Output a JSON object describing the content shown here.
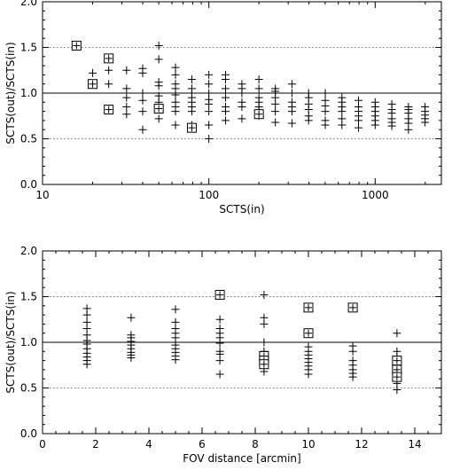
{
  "chart_data": [
    {
      "type": "scatter",
      "xscale": "log",
      "xlim": [
        10,
        2500
      ],
      "ylim": [
        0,
        2.0
      ],
      "xlabel": "SCTS(in)",
      "ylabel": "SCTS(out)/SCTS(in)",
      "xticks": [
        10,
        100,
        1000
      ],
      "xtick_labels": [
        "10",
        "100",
        "1000"
      ],
      "yticks": [
        0,
        0.5,
        1.0,
        1.5,
        2.0
      ],
      "ytick_labels": [
        "0.0",
        "0.5",
        "1.0",
        "1.5",
        "2.0"
      ],
      "reference_lines": [
        {
          "y": 1.0,
          "style": "solid"
        },
        {
          "y": 0.5,
          "style": "dotted"
        },
        {
          "y": 1.5,
          "style": "dotted"
        }
      ],
      "series": [
        {
          "marker": "plus",
          "points": [
            [
              20,
              1.22
            ],
            [
              25,
              1.38
            ],
            [
              25,
              1.25
            ],
            [
              25,
              1.1
            ],
            [
              32,
              1.25
            ],
            [
              32,
              1.05
            ],
            [
              32,
              0.95
            ],
            [
              32,
              0.85
            ],
            [
              32,
              0.77
            ],
            [
              40,
              1.27
            ],
            [
              40,
              1.22
            ],
            [
              40,
              1.0
            ],
            [
              40,
              0.92
            ],
            [
              40,
              0.8
            ],
            [
              40,
              0.6
            ],
            [
              50,
              1.52
            ],
            [
              50,
              1.37
            ],
            [
              50,
              1.12
            ],
            [
              50,
              1.08
            ],
            [
              50,
              0.97
            ],
            [
              50,
              0.9
            ],
            [
              50,
              0.82
            ],
            [
              50,
              0.72
            ],
            [
              63,
              1.28
            ],
            [
              63,
              1.2
            ],
            [
              63,
              1.1
            ],
            [
              63,
              1.05
            ],
            [
              63,
              0.98
            ],
            [
              63,
              0.9
            ],
            [
              63,
              0.85
            ],
            [
              63,
              0.8
            ],
            [
              63,
              0.65
            ],
            [
              79,
              1.15
            ],
            [
              79,
              1.05
            ],
            [
              79,
              1.0
            ],
            [
              79,
              0.95
            ],
            [
              79,
              0.9
            ],
            [
              79,
              0.85
            ],
            [
              79,
              0.8
            ],
            [
              79,
              0.65
            ],
            [
              100,
              1.2
            ],
            [
              100,
              1.1
            ],
            [
              100,
              1.0
            ],
            [
              100,
              0.93
            ],
            [
              100,
              0.88
            ],
            [
              100,
              0.8
            ],
            [
              100,
              0.65
            ],
            [
              100,
              0.5
            ],
            [
              126,
              1.2
            ],
            [
              126,
              1.15
            ],
            [
              126,
              1.05
            ],
            [
              126,
              0.95
            ],
            [
              126,
              0.85
            ],
            [
              126,
              0.8
            ],
            [
              126,
              0.7
            ],
            [
              158,
              1.1
            ],
            [
              158,
              1.05
            ],
            [
              158,
              1.0
            ],
            [
              158,
              0.9
            ],
            [
              158,
              0.85
            ],
            [
              158,
              0.72
            ],
            [
              200,
              1.15
            ],
            [
              200,
              1.05
            ],
            [
              200,
              0.95
            ],
            [
              200,
              0.9
            ],
            [
              200,
              0.85
            ],
            [
              200,
              0.8
            ],
            [
              200,
              0.75
            ],
            [
              251,
              1.05
            ],
            [
              251,
              1.02
            ],
            [
              251,
              0.95
            ],
            [
              251,
              0.88
            ],
            [
              251,
              0.8
            ],
            [
              251,
              0.68
            ],
            [
              316,
              1.1
            ],
            [
              316,
              1.0
            ],
            [
              316,
              0.9
            ],
            [
              316,
              0.85
            ],
            [
              316,
              0.8
            ],
            [
              316,
              0.67
            ],
            [
              398,
              1.0
            ],
            [
              398,
              0.95
            ],
            [
              398,
              0.88
            ],
            [
              398,
              0.82
            ],
            [
              398,
              0.75
            ],
            [
              398,
              0.7
            ],
            [
              501,
              1.0
            ],
            [
              501,
              0.92
            ],
            [
              501,
              0.86
            ],
            [
              501,
              0.8
            ],
            [
              501,
              0.7
            ],
            [
              501,
              0.65
            ],
            [
              631,
              0.95
            ],
            [
              631,
              0.9
            ],
            [
              631,
              0.85
            ],
            [
              631,
              0.8
            ],
            [
              631,
              0.72
            ],
            [
              631,
              0.65
            ],
            [
              794,
              0.92
            ],
            [
              794,
              0.85
            ],
            [
              794,
              0.8
            ],
            [
              794,
              0.75
            ],
            [
              794,
              0.7
            ],
            [
              794,
              0.62
            ],
            [
              1000,
              0.9
            ],
            [
              1000,
              0.85
            ],
            [
              1000,
              0.8
            ],
            [
              1000,
              0.75
            ],
            [
              1000,
              0.7
            ],
            [
              1000,
              0.65
            ],
            [
              1259,
              0.88
            ],
            [
              1259,
              0.82
            ],
            [
              1259,
              0.78
            ],
            [
              1259,
              0.72
            ],
            [
              1259,
              0.68
            ],
            [
              1259,
              0.64
            ],
            [
              1585,
              0.85
            ],
            [
              1585,
              0.82
            ],
            [
              1585,
              0.78
            ],
            [
              1585,
              0.72
            ],
            [
              1585,
              0.67
            ],
            [
              1585,
              0.6
            ],
            [
              1995,
              0.85
            ],
            [
              1995,
              0.8
            ],
            [
              1995,
              0.76
            ],
            [
              1995,
              0.72
            ],
            [
              1995,
              0.68
            ]
          ]
        },
        {
          "marker": "boxed-plus",
          "points": [
            [
              16,
              1.52
            ],
            [
              20,
              1.1
            ],
            [
              25,
              1.38
            ],
            [
              25,
              0.82
            ],
            [
              50,
              0.83
            ],
            [
              79,
              0.62
            ],
            [
              200,
              0.77
            ]
          ]
        }
      ]
    },
    {
      "type": "scatter",
      "xscale": "linear",
      "xlim": [
        0,
        15
      ],
      "ylim": [
        0,
        2.0
      ],
      "xlabel": "FOV distance [arcmin]",
      "ylabel": "SCTS(out)/SCTS(in)",
      "xticks": [
        0,
        2,
        4,
        6,
        8,
        10,
        12,
        14
      ],
      "xtick_labels": [
        "0",
        "2",
        "4",
        "6",
        "8",
        "10",
        "12",
        "14"
      ],
      "yticks": [
        0,
        0.5,
        1.0,
        1.5,
        2.0
      ],
      "ytick_labels": [
        "0.0",
        "0.5",
        "1.0",
        "1.5",
        "2.0"
      ],
      "reference_lines": [
        {
          "y": 1.0,
          "style": "solid"
        },
        {
          "y": 0.5,
          "style": "dotted"
        },
        {
          "y": 1.5,
          "style": "dotted"
        }
      ],
      "series": [
        {
          "marker": "plus",
          "points": [
            [
              1.67,
              1.37
            ],
            [
              1.67,
              1.3
            ],
            [
              1.67,
              1.22
            ],
            [
              1.67,
              1.15
            ],
            [
              1.67,
              1.08
            ],
            [
              1.67,
              1.02
            ],
            [
              1.67,
              0.98
            ],
            [
              1.67,
              0.93
            ],
            [
              1.67,
              0.88
            ],
            [
              1.67,
              0.84
            ],
            [
              1.67,
              0.8
            ],
            [
              1.67,
              0.76
            ],
            [
              3.33,
              1.27
            ],
            [
              3.33,
              1.08
            ],
            [
              3.33,
              1.05
            ],
            [
              3.33,
              1.01
            ],
            [
              3.33,
              0.97
            ],
            [
              3.33,
              0.93
            ],
            [
              3.33,
              0.89
            ],
            [
              3.33,
              0.86
            ],
            [
              3.33,
              0.83
            ],
            [
              5.0,
              1.36
            ],
            [
              5.0,
              1.22
            ],
            [
              5.0,
              1.15
            ],
            [
              5.0,
              1.1
            ],
            [
              5.0,
              1.05
            ],
            [
              5.0,
              1.0
            ],
            [
              5.0,
              0.97
            ],
            [
              5.0,
              0.93
            ],
            [
              5.0,
              0.89
            ],
            [
              5.0,
              0.85
            ],
            [
              5.0,
              0.81
            ],
            [
              6.67,
              1.25
            ],
            [
              6.67,
              1.15
            ],
            [
              6.67,
              1.1
            ],
            [
              6.67,
              1.05
            ],
            [
              6.67,
              0.99
            ],
            [
              6.67,
              0.9
            ],
            [
              6.67,
              0.87
            ],
            [
              6.67,
              0.8
            ],
            [
              6.67,
              0.65
            ],
            [
              8.33,
              1.52
            ],
            [
              8.33,
              1.27
            ],
            [
              8.33,
              1.2
            ],
            [
              8.33,
              1.0
            ],
            [
              8.33,
              0.9
            ],
            [
              8.33,
              0.86
            ],
            [
              8.33,
              0.82
            ],
            [
              8.33,
              0.78
            ],
            [
              8.33,
              0.74
            ],
            [
              8.33,
              0.68
            ],
            [
              10.0,
              0.95
            ],
            [
              10.0,
              0.9
            ],
            [
              10.0,
              0.86
            ],
            [
              10.0,
              0.82
            ],
            [
              10.0,
              0.78
            ],
            [
              10.0,
              0.74
            ],
            [
              10.0,
              0.7
            ],
            [
              10.0,
              0.65
            ],
            [
              11.67,
              0.96
            ],
            [
              11.67,
              0.9
            ],
            [
              11.67,
              0.8
            ],
            [
              11.67,
              0.75
            ],
            [
              11.67,
              0.7
            ],
            [
              11.67,
              0.66
            ],
            [
              11.67,
              0.62
            ],
            [
              13.33,
              1.1
            ],
            [
              13.33,
              0.9
            ],
            [
              13.33,
              0.85
            ],
            [
              13.33,
              0.8
            ],
            [
              13.33,
              0.75
            ],
            [
              13.33,
              0.7
            ],
            [
              13.33,
              0.65
            ],
            [
              13.33,
              0.6
            ],
            [
              13.33,
              0.55
            ],
            [
              13.33,
              0.48
            ]
          ]
        },
        {
          "marker": "boxed-plus",
          "points": [
            [
              6.67,
              1.52
            ],
            [
              8.33,
              0.85
            ],
            [
              8.33,
              0.8
            ],
            [
              8.33,
              0.76
            ],
            [
              10.0,
              1.38
            ],
            [
              10.0,
              1.1
            ],
            [
              11.67,
              1.38
            ],
            [
              13.33,
              0.8
            ],
            [
              13.33,
              0.7
            ],
            [
              13.33,
              0.62
            ]
          ]
        }
      ]
    }
  ]
}
